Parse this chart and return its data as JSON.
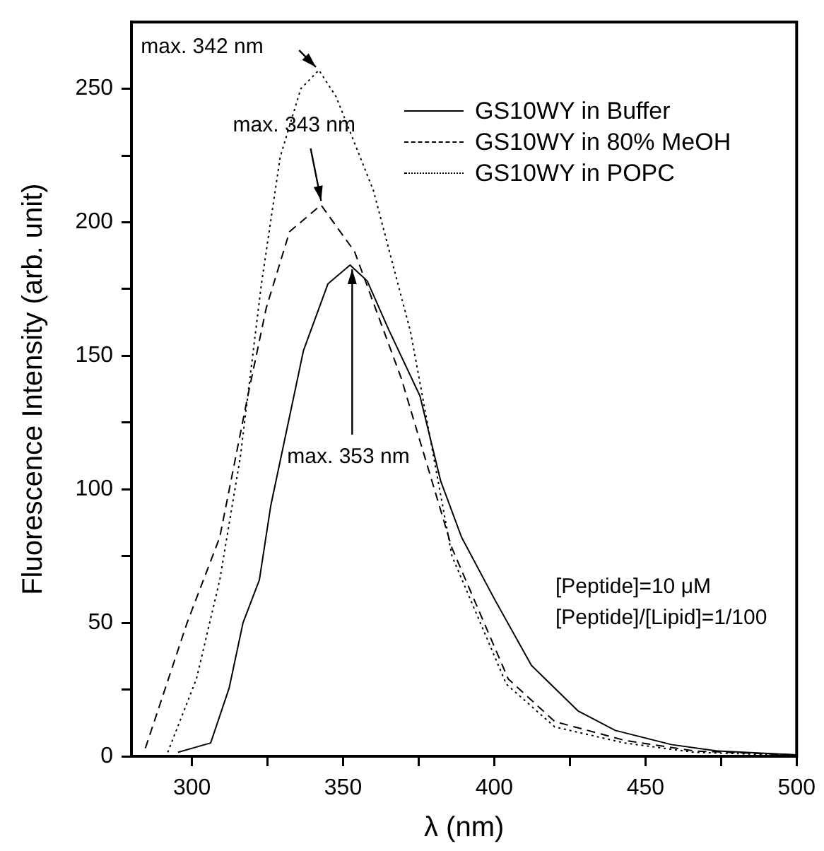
{
  "chart_data": {
    "type": "line",
    "xlabel": "λ (nm)",
    "ylabel": "Fluorescence Intensity (arb. unit)",
    "xlim": [
      280,
      500
    ],
    "ylim": [
      0,
      275
    ],
    "xticks": [
      300,
      {
        "value": 325,
        "label": null
      },
      350,
      {
        "value": 375,
        "label": null
      },
      400,
      {
        "value": 425,
        "label": null
      },
      450,
      {
        "value": 475,
        "label": null
      },
      500
    ],
    "yticks": [
      0,
      {
        "value": 25,
        "label": null
      },
      50,
      {
        "value": 75,
        "label": null
      },
      100,
      {
        "value": 125,
        "label": null
      },
      150,
      {
        "value": 175,
        "label": null
      },
      200,
      {
        "value": 225,
        "label": null
      },
      250
    ],
    "grid": false,
    "legend": "top right",
    "marker": "none",
    "series": [
      {
        "name": "GS10WY in Buffer",
        "color": "#000000",
        "line_style": "solid",
        "x": [
          295.4,
          306.2,
          312.3,
          316.9,
          322.3,
          326.1,
          336.9,
          345,
          352.3,
          358,
          365,
          375.4,
          382.3,
          389.2,
          400,
          412.3,
          427.7,
          440,
          458.5,
          473.7,
          500
        ],
        "values": [
          1.5,
          5,
          25.5,
          50,
          66,
          94,
          152,
          177,
          184,
          178,
          160,
          135,
          103,
          82,
          59,
          34,
          17,
          9.7,
          4.4,
          2,
          0.5
        ]
      },
      {
        "name": "GS10WY in 80% MeOH",
        "color": "#000000",
        "line_style": "dashed",
        "x": [
          284.6,
          298.4,
          309.2,
          318.5,
          324.6,
          332.3,
          342.7,
          353.8,
          369.2,
          386,
          404.6,
          420,
          443,
          466,
          500
        ],
        "values": [
          3,
          50,
          82,
          135,
          168,
          196.5,
          206.5,
          189,
          141.7,
          78,
          29,
          13,
          6,
          2,
          0.5
        ]
      },
      {
        "name": "GS10WY in POPC",
        "color": "#000000",
        "line_style": "dotted",
        "x": [
          292,
          301.5,
          309.2,
          316,
          323,
          329.2,
          336,
          342,
          347.7,
          360,
          372.3,
          386,
          404,
          420,
          443,
          466,
          500
        ],
        "values": [
          1.5,
          29,
          66,
          112,
          177,
          224.5,
          250,
          257,
          247,
          212,
          159,
          75,
          27,
          11,
          5,
          1.5,
          0.3
        ]
      }
    ],
    "annotations": [
      {
        "text": "max. 342 nm",
        "x": 342,
        "y": 257
      },
      {
        "text": "max. 343 nm",
        "x": 343,
        "y": 206.5
      },
      {
        "text": "max. 353 nm",
        "x": 353,
        "y": 184
      },
      "[Peptide]=10 μM",
      "[Peptide]/[Lipid]=1/100"
    ]
  }
}
